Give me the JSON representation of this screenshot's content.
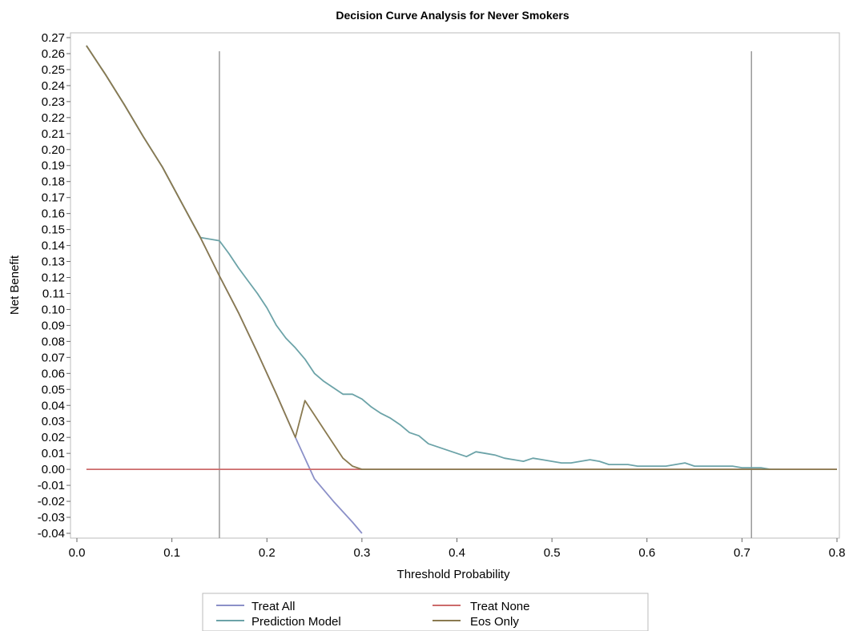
{
  "chart_data": {
    "type": "line",
    "title": "Decision Curve Analysis for Never Smokers",
    "xlabel": "Threshold Probability",
    "ylabel": "Net Benefit",
    "xlim": [
      0.0,
      0.8
    ],
    "ylim": [
      -0.04,
      0.27
    ],
    "x_ticks": [
      "0.0",
      "0.1",
      "0.2",
      "0.3",
      "0.4",
      "0.5",
      "0.6",
      "0.7",
      "0.8"
    ],
    "y_ticks": [
      "0.27",
      "0.26",
      "0.25",
      "0.24",
      "0.23",
      "0.22",
      "0.21",
      "0.20",
      "0.19",
      "0.18",
      "0.17",
      "0.16",
      "0.15",
      "0.14",
      "0.13",
      "0.12",
      "0.11",
      "0.10",
      "0.09",
      "0.08",
      "0.07",
      "0.06",
      "0.05",
      "0.04",
      "0.03",
      "0.02",
      "0.01",
      "0.00",
      "-0.01",
      "-0.02",
      "-0.03",
      "-0.04"
    ],
    "grid": false,
    "legend_position": "bottom",
    "reference_lines_x": [
      0.15,
      0.71
    ],
    "series": [
      {
        "name": "Treat All",
        "color": "#8b90c8",
        "x": [
          0.01,
          0.03,
          0.05,
          0.07,
          0.09,
          0.11,
          0.13,
          0.15,
          0.17,
          0.19,
          0.21,
          0.23,
          0.25,
          0.27,
          0.29,
          0.3
        ],
        "y": [
          0.265,
          0.247,
          0.228,
          0.208,
          0.189,
          0.167,
          0.145,
          0.121,
          0.098,
          0.073,
          0.047,
          0.02,
          -0.006,
          -0.02,
          -0.033,
          -0.04
        ]
      },
      {
        "name": "Treat None",
        "color": "#cc6a6a",
        "x": [
          0.01,
          0.8
        ],
        "y": [
          0.0,
          0.0
        ]
      },
      {
        "name": "Prediction Model",
        "color": "#6ca3a8",
        "x": [
          0.01,
          0.03,
          0.05,
          0.07,
          0.09,
          0.11,
          0.13,
          0.15,
          0.16,
          0.17,
          0.18,
          0.19,
          0.2,
          0.21,
          0.22,
          0.23,
          0.24,
          0.25,
          0.26,
          0.27,
          0.28,
          0.29,
          0.3,
          0.31,
          0.32,
          0.33,
          0.34,
          0.35,
          0.36,
          0.37,
          0.38,
          0.39,
          0.4,
          0.41,
          0.42,
          0.43,
          0.44,
          0.45,
          0.46,
          0.47,
          0.48,
          0.49,
          0.5,
          0.51,
          0.52,
          0.53,
          0.54,
          0.55,
          0.56,
          0.57,
          0.58,
          0.59,
          0.6,
          0.61,
          0.62,
          0.63,
          0.64,
          0.65,
          0.66,
          0.67,
          0.68,
          0.69,
          0.7,
          0.71,
          0.72,
          0.73,
          0.74
        ],
        "y": [
          0.265,
          0.247,
          0.228,
          0.208,
          0.189,
          0.167,
          0.145,
          0.143,
          0.135,
          0.126,
          0.118,
          0.11,
          0.101,
          0.09,
          0.082,
          0.076,
          0.069,
          0.06,
          0.055,
          0.051,
          0.047,
          0.047,
          0.044,
          0.039,
          0.035,
          0.032,
          0.028,
          0.023,
          0.021,
          0.016,
          0.014,
          0.012,
          0.01,
          0.008,
          0.011,
          0.01,
          0.009,
          0.007,
          0.006,
          0.005,
          0.007,
          0.006,
          0.005,
          0.004,
          0.004,
          0.005,
          0.006,
          0.005,
          0.003,
          0.003,
          0.003,
          0.002,
          0.002,
          0.002,
          0.002,
          0.003,
          0.004,
          0.002,
          0.002,
          0.002,
          0.002,
          0.002,
          0.001,
          0.001,
          0.001,
          0.0,
          0.0
        ]
      },
      {
        "name": "Eos Only",
        "color": "#8a7a50",
        "x": [
          0.01,
          0.03,
          0.05,
          0.07,
          0.09,
          0.11,
          0.13,
          0.15,
          0.17,
          0.19,
          0.21,
          0.23,
          0.24,
          0.25,
          0.26,
          0.27,
          0.28,
          0.29,
          0.3,
          0.4,
          0.5,
          0.6,
          0.7,
          0.8
        ],
        "y": [
          0.265,
          0.247,
          0.228,
          0.208,
          0.189,
          0.167,
          0.145,
          0.121,
          0.098,
          0.073,
          0.047,
          0.02,
          0.043,
          0.034,
          0.025,
          0.016,
          0.007,
          0.002,
          0.0,
          0.0,
          0.0,
          0.0,
          0.0,
          0.0
        ]
      }
    ]
  },
  "legend": {
    "items": [
      {
        "label": "Treat All",
        "color": "#8b90c8"
      },
      {
        "label": "Treat None",
        "color": "#cc6a6a"
      },
      {
        "label": "Prediction Model",
        "color": "#6ca3a8"
      },
      {
        "label": "Eos Only",
        "color": "#8a7a50"
      }
    ]
  }
}
